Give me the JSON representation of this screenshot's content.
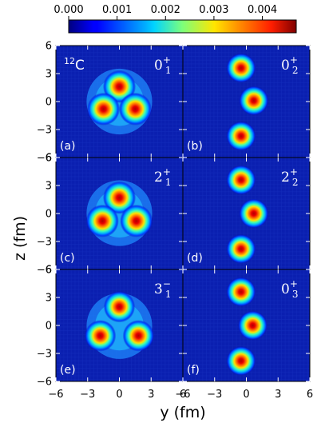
{
  "chart_data": {
    "type": "heatmap",
    "title": "",
    "xlabel": "y (fm)",
    "ylabel": "z (fm)",
    "xlim": [
      -6,
      6
    ],
    "ylim": [
      -6,
      6
    ],
    "x_ticks": [
      "−6",
      "−3",
      "0",
      "3",
      "6"
    ],
    "y_ticks": [
      "6",
      "3",
      "0",
      "−3",
      "−6"
    ],
    "colorbar": {
      "range": [
        0,
        0.0047
      ],
      "ticks": [
        "0.000",
        "0.001",
        "0.002",
        "0.003",
        "0.004"
      ],
      "tick_values": [
        0.0,
        0.001,
        0.002,
        0.003,
        0.004
      ],
      "colormap": "jet"
    },
    "nucleus": {
      "mass": "12",
      "symbol": "C"
    },
    "panels": [
      {
        "id": "a",
        "tag": "(a)",
        "state": {
          "j": "0",
          "parity": "+",
          "n": "1"
        },
        "clusters": [
          {
            "y": 0,
            "z": 1.6,
            "peak": 0.0047
          },
          {
            "y": -1.5,
            "z": -0.8,
            "peak": 0.0047
          },
          {
            "y": 1.5,
            "z": -0.8,
            "peak": 0.0047
          }
        ]
      },
      {
        "id": "b",
        "tag": "(b)",
        "state": {
          "j": "0",
          "parity": "+",
          "n": "2"
        },
        "clusters": [
          {
            "y": -0.5,
            "z": 3.6,
            "peak": 0.0045
          },
          {
            "y": 0.7,
            "z": 0.1,
            "peak": 0.0045
          },
          {
            "y": -0.5,
            "z": -3.7,
            "peak": 0.0045
          }
        ]
      },
      {
        "id": "c",
        "tag": "(c)",
        "state": {
          "j": "2",
          "parity": "+",
          "n": "1"
        },
        "clusters": [
          {
            "y": 0,
            "z": 1.7,
            "peak": 0.0047
          },
          {
            "y": -1.6,
            "z": -0.8,
            "peak": 0.0047
          },
          {
            "y": 1.6,
            "z": -0.8,
            "peak": 0.0047
          }
        ]
      },
      {
        "id": "d",
        "tag": "(d)",
        "state": {
          "j": "2",
          "parity": "+",
          "n": "2"
        },
        "clusters": [
          {
            "y": -0.5,
            "z": 3.6,
            "peak": 0.0045
          },
          {
            "y": 0.7,
            "z": 0.0,
            "peak": 0.0045
          },
          {
            "y": -0.5,
            "z": -3.8,
            "peak": 0.0045
          }
        ]
      },
      {
        "id": "e",
        "tag": "(e)",
        "state": {
          "j": "3",
          "parity": "−",
          "n": "1"
        },
        "clusters": [
          {
            "y": 0,
            "z": 2.0,
            "peak": 0.0045
          },
          {
            "y": -1.8,
            "z": -1.1,
            "peak": 0.0045
          },
          {
            "y": 1.8,
            "z": -1.1,
            "peak": 0.0045
          }
        ]
      },
      {
        "id": "f",
        "tag": "(f)",
        "state": {
          "j": "0",
          "parity": "+",
          "n": "3"
        },
        "clusters": [
          {
            "y": -0.5,
            "z": 3.6,
            "peak": 0.0045
          },
          {
            "y": 0.6,
            "z": 0.0,
            "peak": 0.0045
          },
          {
            "y": -0.5,
            "z": -3.8,
            "peak": 0.0045
          }
        ]
      }
    ]
  }
}
